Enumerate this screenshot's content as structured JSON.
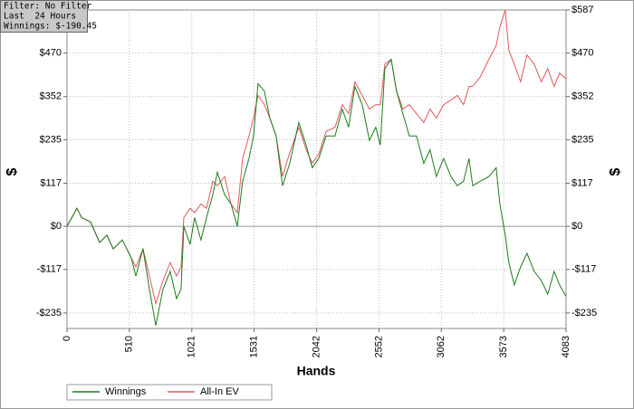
{
  "chart_data": {
    "type": "line",
    "info": [
      "Filter: No Filter",
      "Last  24 Hours",
      "Winnings: $-190.45"
    ],
    "x_label": "Hands",
    "y_label": "$",
    "y2_label": "$",
    "x": [
      0,
      81,
      119,
      193,
      267,
      326,
      378,
      452,
      526,
      563,
      622,
      674,
      726,
      785,
      844,
      896,
      933,
      956,
      1007,
      1044,
      1096,
      1141,
      1193,
      1230,
      1289,
      1341,
      1393,
      1437,
      1489,
      1526,
      1563,
      1615,
      1659,
      1711,
      1763,
      1822,
      1896,
      1956,
      2007,
      2059,
      2119,
      2193,
      2252,
      2304,
      2356,
      2415,
      2474,
      2526,
      2563,
      2600,
      2652,
      2696,
      2748,
      2800,
      2859,
      2919,
      2970,
      3022,
      3081,
      3141,
      3193,
      3244,
      3289,
      3319,
      3378,
      3452,
      3511,
      3541,
      3585,
      3615,
      3659,
      3711,
      3763,
      3822,
      3881,
      3933,
      3985,
      4030,
      4083
    ],
    "series": [
      {
        "name": "Winnings",
        "color": "#1f7a1f",
        "values": [
          0,
          49,
          24,
          12,
          -44,
          -24,
          -61,
          -37,
          -86,
          -135,
          -61,
          -171,
          -269,
          -171,
          -122,
          -196,
          -171,
          0,
          -49,
          24,
          -37,
          24,
          86,
          147,
          86,
          61,
          0,
          122,
          184,
          245,
          387,
          367,
          294,
          245,
          110,
          171,
          282,
          220,
          159,
          184,
          245,
          245,
          318,
          269,
          379,
          330,
          233,
          269,
          220,
          428,
          453,
          367,
          306,
          245,
          245,
          171,
          208,
          135,
          184,
          135,
          110,
          122,
          184,
          110,
          122,
          135,
          159,
          61,
          -24,
          -98,
          -159,
          -110,
          -73,
          -122,
          -147,
          -184,
          -122,
          -159,
          -190
        ]
      },
      {
        "name": "All-In EV",
        "color": "#e05a5a",
        "values": [
          0,
          49,
          24,
          12,
          -44,
          -24,
          -61,
          -37,
          -86,
          -110,
          -61,
          -135,
          -210,
          -147,
          -98,
          -135,
          -110,
          24,
          49,
          37,
          61,
          49,
          122,
          110,
          135,
          61,
          37,
          184,
          245,
          294,
          355,
          330,
          294,
          245,
          135,
          200,
          269,
          208,
          171,
          196,
          257,
          269,
          330,
          306,
          392,
          355,
          318,
          330,
          330,
          440,
          453,
          367,
          318,
          330,
          306,
          282,
          318,
          294,
          330,
          343,
          355,
          330,
          379,
          380,
          404,
          453,
          490,
          540,
          587,
          478,
          440,
          392,
          465,
          440,
          392,
          428,
          379,
          416,
          400
        ]
      }
    ],
    "xlim": [
      0,
      4083
    ],
    "xticks": [
      0,
      510,
      1021,
      1531,
      2042,
      2552,
      3062,
      3573,
      4083
    ],
    "ylim": [
      -277,
      587
    ],
    "yticks": [
      {
        "value": -235,
        "label": "-$235"
      },
      {
        "value": -117,
        "label": "-$117"
      },
      {
        "value": 0,
        "label": "$0"
      },
      {
        "value": 117,
        "label": "$117"
      },
      {
        "value": 235,
        "label": "$235"
      },
      {
        "value": 352,
        "label": "$352"
      },
      {
        "value": 470,
        "label": "$470"
      }
    ],
    "y2lim": [
      -277,
      587
    ],
    "y2ticks": [
      {
        "value": -235,
        "label": "-$235"
      },
      {
        "value": -117,
        "label": "-$117"
      },
      {
        "value": 0,
        "label": "$0"
      },
      {
        "value": 117,
        "label": "$117"
      },
      {
        "value": 235,
        "label": "$235"
      },
      {
        "value": 352,
        "label": "$352"
      },
      {
        "value": 470,
        "label": "$470"
      },
      {
        "value": 587,
        "label": "$587"
      }
    ],
    "grid": true,
    "legend": "bottom-left"
  }
}
